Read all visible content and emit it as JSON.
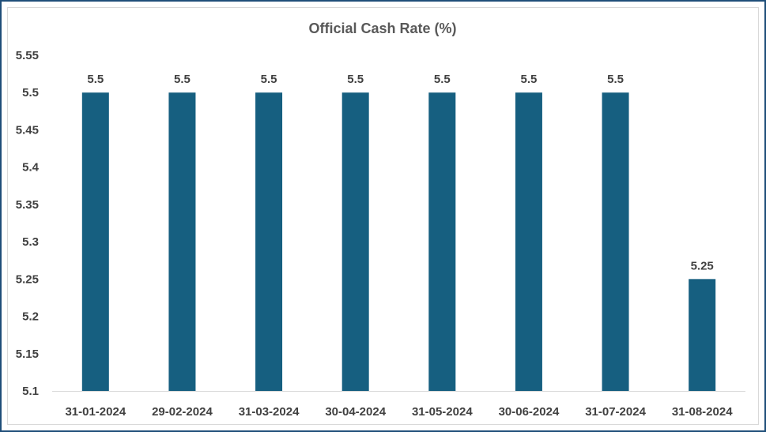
{
  "chart_data": {
    "type": "bar",
    "title": "Official Cash Rate (%)",
    "xlabel": "",
    "ylabel": "",
    "categories": [
      "31-01-2024",
      "29-02-2024",
      "31-03-2024",
      "30-04-2024",
      "31-05-2024",
      "30-06-2024",
      "31-07-2024",
      "31-08-2024"
    ],
    "values": [
      5.5,
      5.5,
      5.5,
      5.5,
      5.5,
      5.5,
      5.5,
      5.25
    ],
    "data_labels": [
      "5.5",
      "5.5",
      "5.5",
      "5.5",
      "5.5",
      "5.5",
      "5.5",
      "5.25"
    ],
    "ylim": [
      5.1,
      5.55
    ],
    "yticks": [
      "5.1",
      "5.15",
      "5.2",
      "5.25",
      "5.3",
      "5.35",
      "5.4",
      "5.45",
      "5.5",
      "5.55"
    ],
    "grid": false,
    "legend": "none",
    "bar_color": "#165f80"
  }
}
